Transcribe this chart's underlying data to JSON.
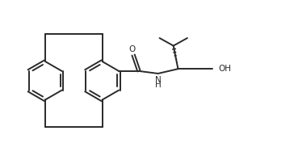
{
  "bg_color": "#ffffff",
  "line_color": "#2a2a2a",
  "line_width": 1.4,
  "fig_width": 3.64,
  "fig_height": 1.88,
  "dpi": 100,
  "xlim": [
    0.0,
    9.5
  ],
  "ylim": [
    0.0,
    4.8
  ]
}
